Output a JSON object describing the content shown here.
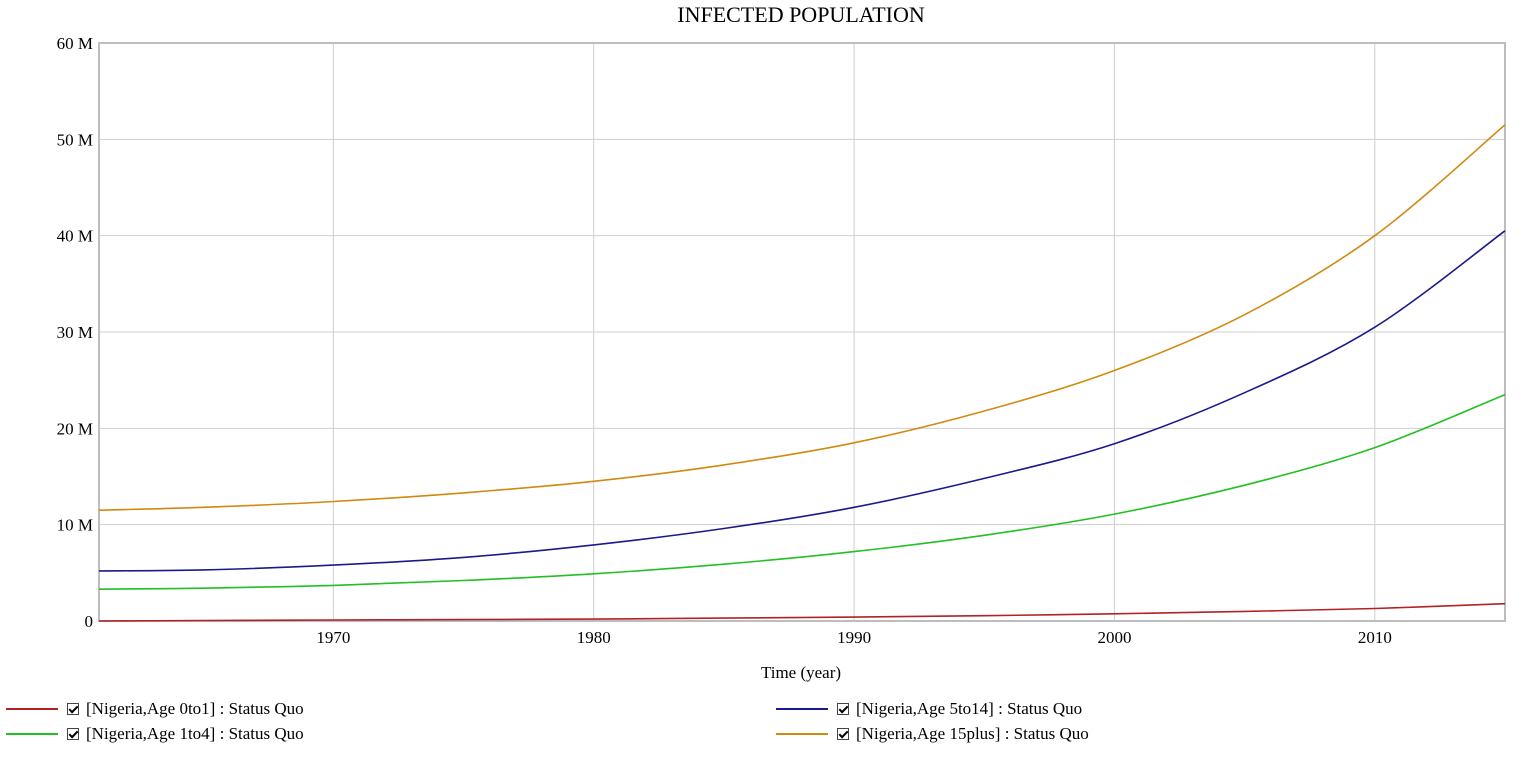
{
  "chart_data": {
    "type": "line",
    "title": "INFECTED POPULATION",
    "xlabel": "Time (year)",
    "ylabel": "",
    "xlim": [
      1961,
      2015
    ],
    "ylim": [
      0,
      60000000
    ],
    "x_ticks": [
      1970,
      1980,
      1990,
      2000,
      2010
    ],
    "y_ticks": [
      0,
      10000000,
      20000000,
      30000000,
      40000000,
      50000000,
      60000000
    ],
    "y_tick_labels": [
      "0",
      "10 M",
      "20 M",
      "30 M",
      "40 M",
      "50 M",
      "60 M"
    ],
    "grid": true,
    "legend_position": "bottom",
    "x": [
      1961,
      1965,
      1970,
      1975,
      1980,
      1985,
      1990,
      1995,
      2000,
      2005,
      2010,
      2015
    ],
    "series": [
      {
        "name": "[Nigeria,Age 0to1] : Status Quo",
        "color": "#b22222",
        "values": [
          0,
          50000,
          100000,
          150000,
          200000,
          300000,
          400000,
          550000,
          750000,
          1000000,
          1300000,
          1800000
        ]
      },
      {
        "name": "[Nigeria,Age 1to4] : Status Quo",
        "color": "#22c022",
        "values": [
          3300000,
          3400000,
          3700000,
          4200000,
          4900000,
          5900000,
          7200000,
          8900000,
          11100000,
          14100000,
          18000000,
          23500000
        ]
      },
      {
        "name": "[Nigeria,Age 5to14] : Status Quo",
        "color": "#1a1a8c",
        "values": [
          5200000,
          5300000,
          5800000,
          6600000,
          7900000,
          9600000,
          11800000,
          14800000,
          18400000,
          23700000,
          30500000,
          40500000
        ]
      },
      {
        "name": "[Nigeria,Age 15plus] : Status Quo",
        "color": "#d08a10",
        "values": [
          11500000,
          11800000,
          12400000,
          13300000,
          14500000,
          16200000,
          18500000,
          21800000,
          26000000,
          31800000,
          40000000,
          51500000
        ]
      }
    ]
  }
}
